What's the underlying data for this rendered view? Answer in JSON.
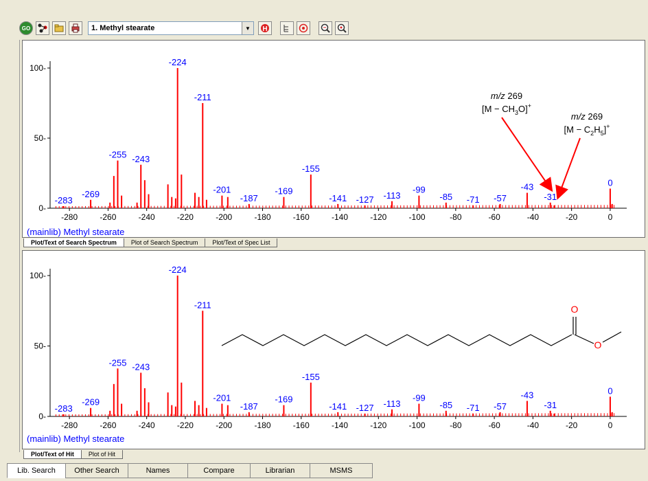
{
  "toolbar": {
    "buttons": [
      {
        "icon": "go-icon",
        "label": "GO"
      },
      {
        "icon": "structure-icon",
        "label": ""
      },
      {
        "icon": "open-folder-icon",
        "label": ""
      },
      {
        "icon": "print-icon",
        "label": ""
      }
    ],
    "compound_select": "1. Methyl stearate",
    "right_buttons": [
      "h-icon",
      "tree-icon",
      "target-icon",
      "zoom-in-icon",
      "zoom-reset-icon"
    ]
  },
  "search_panel": {
    "library_label": "(mainlib) Methyl stearate",
    "tabs": [
      "Plot/Text of Search Spectrum",
      "Plot of Search Spectrum",
      "Plot/Text of Spec List"
    ],
    "annotation1_mz": "m/z",
    "annotation1_value": " 269",
    "annotation1_ion_a": "[M − CH",
    "annotation1_ion_sub": "3",
    "annotation1_ion_b": "O]",
    "annotation1_ion_sup": "+",
    "annotation2_mz": "m/z",
    "annotation2_value": " 269",
    "annotation2_ion_a": "[M − C",
    "annotation2_ion_sub1": "2",
    "annotation2_ion_b": "H",
    "annotation2_ion_sub2": "5",
    "annotation2_ion_c": "]",
    "annotation2_ion_sup": "+"
  },
  "hit_panel": {
    "library_label": "(mainlib) Methyl stearate",
    "tabs": [
      "Plot/Text of Hit",
      "Plot of Hit"
    ],
    "structure_atom_o1": "O",
    "structure_atom_o2": "O"
  },
  "bottom_tabs": [
    "Lib. Search",
    "Other Search",
    "Names",
    "Compare",
    "Librarian",
    "MSMS"
  ],
  "colors": {
    "peak": "#ff0000",
    "peak_label": "#0000ff",
    "arrow": "#ff0000",
    "axis": "#000000"
  },
  "chart_data": [
    {
      "type": "bar",
      "xlim": [
        -290,
        5
      ],
      "ylim": [
        0,
        100
      ],
      "x_ticks": [
        -280,
        -260,
        -240,
        -220,
        -200,
        -180,
        -160,
        -140,
        -120,
        -100,
        -80,
        -60,
        -40,
        -20,
        0
      ],
      "y_ticks": [
        0,
        50,
        100
      ],
      "peaks": [
        {
          "x": -283,
          "y": 1.5,
          "label": "-283"
        },
        {
          "x": -269,
          "y": 6,
          "label": "-269"
        },
        {
          "x": -255,
          "y": 34,
          "label": "-255"
        },
        {
          "x": -257,
          "y": 23
        },
        {
          "x": -253,
          "y": 9
        },
        {
          "x": -259,
          "y": 4
        },
        {
          "x": -243,
          "y": 31,
          "label": "-243"
        },
        {
          "x": -241,
          "y": 20
        },
        {
          "x": -239,
          "y": 10
        },
        {
          "x": -245,
          "y": 4
        },
        {
          "x": -229,
          "y": 17
        },
        {
          "x": -227,
          "y": 8
        },
        {
          "x": -224,
          "y": 100,
          "label": "-224"
        },
        {
          "x": -222,
          "y": 24
        },
        {
          "x": -225,
          "y": 7
        },
        {
          "x": -215,
          "y": 11
        },
        {
          "x": -213,
          "y": 8
        },
        {
          "x": -211,
          "y": 75,
          "label": "-211"
        },
        {
          "x": -209,
          "y": 6
        },
        {
          "x": -201,
          "y": 9,
          "label": "-201"
        },
        {
          "x": -198,
          "y": 8
        },
        {
          "x": -187,
          "y": 3,
          "label": "-187"
        },
        {
          "x": -169,
          "y": 8,
          "label": "-169"
        },
        {
          "x": -155,
          "y": 24,
          "label": "-155"
        },
        {
          "x": -141,
          "y": 3,
          "label": "-141"
        },
        {
          "x": -127,
          "y": 2,
          "label": "-127"
        },
        {
          "x": -113,
          "y": 5,
          "label": "-113"
        },
        {
          "x": -99,
          "y": 9,
          "label": "-99"
        },
        {
          "x": -85,
          "y": 4,
          "label": "-85"
        },
        {
          "x": -71,
          "y": 2,
          "label": "-71"
        },
        {
          "x": -57,
          "y": 3,
          "label": "-57"
        },
        {
          "x": -43,
          "y": 11,
          "label": "-43"
        },
        {
          "x": -31,
          "y": 4,
          "label": "-31"
        },
        {
          "x": -29,
          "y": 2
        },
        {
          "x": 0,
          "y": 14,
          "label": "0"
        },
        {
          "x": 1,
          "y": 3
        }
      ]
    },
    {
      "type": "bar",
      "xlim": [
        -290,
        5
      ],
      "ylim": [
        0,
        100
      ],
      "x_ticks": [
        -280,
        -260,
        -240,
        -220,
        -200,
        -180,
        -160,
        -140,
        -120,
        -100,
        -80,
        -60,
        -40,
        -20,
        0
      ],
      "y_ticks": [
        0,
        50,
        100
      ],
      "peaks": [
        {
          "x": -283,
          "y": 1.5,
          "label": "-283"
        },
        {
          "x": -269,
          "y": 6,
          "label": "-269"
        },
        {
          "x": -255,
          "y": 34,
          "label": "-255"
        },
        {
          "x": -257,
          "y": 23
        },
        {
          "x": -253,
          "y": 9
        },
        {
          "x": -259,
          "y": 4
        },
        {
          "x": -243,
          "y": 31,
          "label": "-243"
        },
        {
          "x": -241,
          "y": 20
        },
        {
          "x": -239,
          "y": 10
        },
        {
          "x": -245,
          "y": 4
        },
        {
          "x": -229,
          "y": 17
        },
        {
          "x": -227,
          "y": 8
        },
        {
          "x": -224,
          "y": 100,
          "label": "-224"
        },
        {
          "x": -222,
          "y": 24
        },
        {
          "x": -225,
          "y": 7
        },
        {
          "x": -215,
          "y": 11
        },
        {
          "x": -213,
          "y": 8
        },
        {
          "x": -211,
          "y": 75,
          "label": "-211"
        },
        {
          "x": -209,
          "y": 6
        },
        {
          "x": -201,
          "y": 9,
          "label": "-201"
        },
        {
          "x": -198,
          "y": 8
        },
        {
          "x": -187,
          "y": 3,
          "label": "-187"
        },
        {
          "x": -169,
          "y": 8,
          "label": "-169"
        },
        {
          "x": -155,
          "y": 24,
          "label": "-155"
        },
        {
          "x": -141,
          "y": 3,
          "label": "-141"
        },
        {
          "x": -127,
          "y": 2,
          "label": "-127"
        },
        {
          "x": -113,
          "y": 5,
          "label": "-113"
        },
        {
          "x": -99,
          "y": 9,
          "label": "-99"
        },
        {
          "x": -85,
          "y": 4,
          "label": "-85"
        },
        {
          "x": -71,
          "y": 2,
          "label": "-71"
        },
        {
          "x": -57,
          "y": 3,
          "label": "-57"
        },
        {
          "x": -43,
          "y": 11,
          "label": "-43"
        },
        {
          "x": -31,
          "y": 4,
          "label": "-31"
        },
        {
          "x": -29,
          "y": 2
        },
        {
          "x": 0,
          "y": 14,
          "label": "0"
        },
        {
          "x": 1,
          "y": 3
        }
      ]
    }
  ]
}
